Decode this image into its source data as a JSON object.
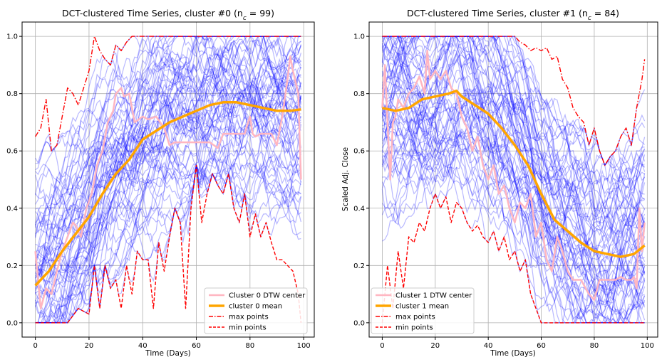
{
  "chart_data": [
    {
      "type": "line",
      "title": "DCT-clustered Time Series, cluster #0 (n",
      "title_sub": "c",
      "title_eq": " = 99)",
      "xlabel": "Time (Days)",
      "ylabel": "",
      "xlim": [
        -4.95,
        103.95
      ],
      "ylim": [
        -0.05,
        1.05
      ],
      "xticks": [
        "0",
        "20",
        "40",
        "60",
        "80",
        "100"
      ],
      "yticks": [
        "0.0",
        "0.2",
        "0.4",
        "0.6",
        "0.8",
        "1.0"
      ],
      "grid": true,
      "legend_position": "lower-right",
      "legend": [
        {
          "label": "Cluster 0 DTW center",
          "color": "#ffb6c1",
          "style": "solid-thick"
        },
        {
          "label": "cluster 0 mean",
          "color": "#ffa500",
          "style": "solid-thicker"
        },
        {
          "label": "max points",
          "color": "#ff0000",
          "style": "dashdot"
        },
        {
          "label": "min points",
          "color": "#ff0000",
          "style": "dashed"
        }
      ],
      "series": [
        {
          "name": "cluster 0 mean",
          "color": "#ffa500",
          "x": [
            0,
            5,
            10,
            15,
            20,
            25,
            30,
            35,
            40,
            45,
            50,
            55,
            60,
            65,
            70,
            75,
            80,
            85,
            90,
            95,
            99
          ],
          "y": [
            0.13,
            0.18,
            0.25,
            0.31,
            0.37,
            0.45,
            0.52,
            0.57,
            0.64,
            0.67,
            0.7,
            0.72,
            0.74,
            0.76,
            0.77,
            0.77,
            0.76,
            0.75,
            0.74,
            0.74,
            0.745
          ]
        },
        {
          "name": "Cluster 0 DTW center",
          "color": "#ffb6c1",
          "x": [
            0,
            2,
            4,
            6,
            8,
            10,
            12,
            14,
            15,
            17,
            19,
            21,
            23,
            25,
            27,
            29,
            30,
            32,
            33,
            35,
            37,
            40,
            42,
            45,
            48,
            50,
            52,
            55,
            57,
            60,
            62,
            65,
            68,
            70,
            72,
            75,
            78,
            80,
            81,
            82,
            84,
            86,
            88,
            90,
            92,
            94,
            95,
            96,
            98,
            99
          ],
          "y": [
            0.25,
            0.05,
            0.12,
            0.1,
            0.18,
            0.25,
            0.3,
            0.35,
            0.34,
            0.3,
            0.4,
            0.45,
            0.55,
            0.6,
            0.7,
            0.74,
            0.8,
            0.82,
            0.79,
            0.8,
            0.7,
            0.72,
            0.71,
            0.72,
            0.68,
            0.62,
            0.63,
            0.63,
            0.63,
            0.63,
            0.63,
            0.63,
            0.61,
            0.66,
            0.66,
            0.66,
            0.66,
            0.72,
            0.66,
            0.65,
            0.66,
            0.66,
            0.66,
            0.62,
            0.72,
            0.85,
            0.93,
            0.88,
            0.8,
            0.5
          ]
        },
        {
          "name": "max points",
          "color": "#ff0000",
          "x": [
            0,
            2,
            4,
            6,
            8,
            10,
            12,
            14,
            16,
            18,
            20,
            22,
            24,
            26,
            28,
            30,
            32,
            34,
            36,
            38,
            40,
            42,
            44,
            46,
            48,
            50,
            52,
            54,
            56,
            58,
            60,
            62,
            64,
            66,
            68,
            70,
            72,
            74,
            76,
            78,
            80,
            82,
            84,
            86,
            88,
            90,
            92,
            94,
            96,
            98,
            99
          ],
          "y": [
            0.65,
            0.68,
            0.78,
            0.6,
            0.62,
            0.72,
            0.82,
            0.8,
            0.76,
            0.82,
            0.88,
            1.0,
            0.95,
            0.92,
            0.9,
            0.97,
            0.95,
            0.98,
            1.0,
            1.0,
            1.0,
            1.0,
            1.0,
            1.0,
            1.0,
            1.0,
            1.0,
            1.0,
            1.0,
            1.0,
            1.0,
            1.0,
            1.0,
            1.0,
            1.0,
            1.0,
            1.0,
            1.0,
            1.0,
            1.0,
            1.0,
            1.0,
            1.0,
            1.0,
            1.0,
            1.0,
            1.0,
            1.0,
            1.0,
            1.0,
            1.0
          ]
        },
        {
          "name": "min points",
          "color": "#ff0000",
          "x": [
            0,
            4,
            8,
            12,
            16,
            20,
            22,
            24,
            26,
            28,
            30,
            32,
            34,
            36,
            38,
            40,
            42,
            44,
            46,
            48,
            50,
            52,
            54,
            56,
            58,
            60,
            62,
            64,
            66,
            68,
            70,
            72,
            74,
            76,
            78,
            80,
            82,
            84,
            86,
            88,
            90,
            92,
            94,
            96,
            98,
            99
          ],
          "y": [
            0.0,
            0.0,
            0.0,
            0.0,
            0.05,
            0.03,
            0.2,
            0.05,
            0.2,
            0.12,
            0.15,
            0.05,
            0.2,
            0.1,
            0.25,
            0.22,
            0.22,
            0.05,
            0.28,
            0.18,
            0.3,
            0.4,
            0.35,
            0.05,
            0.4,
            0.55,
            0.35,
            0.45,
            0.52,
            0.48,
            0.45,
            0.52,
            0.4,
            0.35,
            0.45,
            0.3,
            0.38,
            0.3,
            0.35,
            0.28,
            0.22,
            0.22,
            0.2,
            0.18,
            0.1,
            0.0
          ]
        }
      ]
    },
    {
      "type": "line",
      "title": "DCT-clustered Time Series, cluster #1 (n",
      "title_sub": "c",
      "title_eq": " = 84)",
      "xlabel": "Time (Days)",
      "ylabel": "Scaled Adj. Close",
      "xlim": [
        -4.95,
        103.95
      ],
      "ylim": [
        -0.05,
        1.05
      ],
      "xticks": [
        "0",
        "20",
        "40",
        "60",
        "80",
        "100"
      ],
      "yticks": [
        "0.0",
        "0.2",
        "0.4",
        "0.6",
        "0.8",
        "1.0"
      ],
      "grid": true,
      "legend_position": "lower-left",
      "legend": [
        {
          "label": "Cluster 1 DTW center",
          "color": "#ffb6c1",
          "style": "solid-thick"
        },
        {
          "label": "cluster 1 mean",
          "color": "#ffa500",
          "style": "solid-thicker"
        },
        {
          "label": "max points",
          "color": "#ff0000",
          "style": "dashdot"
        },
        {
          "label": "min points",
          "color": "#ff0000",
          "style": "dashed"
        }
      ],
      "series": [
        {
          "name": "cluster 1 mean",
          "color": "#ffa500",
          "x": [
            0,
            5,
            10,
            15,
            20,
            25,
            28,
            30,
            35,
            40,
            45,
            50,
            55,
            60,
            65,
            70,
            75,
            80,
            85,
            90,
            95,
            99
          ],
          "y": [
            0.75,
            0.74,
            0.75,
            0.78,
            0.79,
            0.8,
            0.81,
            0.79,
            0.76,
            0.73,
            0.68,
            0.62,
            0.55,
            0.45,
            0.36,
            0.32,
            0.28,
            0.25,
            0.24,
            0.23,
            0.24,
            0.27
          ]
        },
        {
          "name": "Cluster 1 DTW center",
          "color": "#ffb6c1",
          "x": [
            0,
            1,
            2,
            3,
            4,
            5,
            6,
            8,
            10,
            12,
            14,
            16,
            17,
            18,
            20,
            22,
            24,
            25,
            26,
            28,
            30,
            32,
            34,
            36,
            38,
            40,
            42,
            44,
            46,
            48,
            50,
            52,
            54,
            56,
            58,
            60,
            62,
            64,
            66,
            68,
            70,
            72,
            75,
            78,
            80,
            82,
            84,
            86,
            88,
            90,
            92,
            94,
            95,
            96,
            97,
            98,
            99
          ],
          "y": [
            0.75,
            0.9,
            0.7,
            0.5,
            0.7,
            0.72,
            0.78,
            0.75,
            0.8,
            0.82,
            0.86,
            0.8,
            0.95,
            0.85,
            0.88,
            0.85,
            0.88,
            0.85,
            0.82,
            0.8,
            0.72,
            0.68,
            0.6,
            0.65,
            0.55,
            0.5,
            0.55,
            0.45,
            0.48,
            0.4,
            0.35,
            0.42,
            0.4,
            0.45,
            0.3,
            0.35,
            0.22,
            0.18,
            0.3,
            0.25,
            0.18,
            0.15,
            0.15,
            0.1,
            0.08,
            0.15,
            0.15,
            0.15,
            0.15,
            0.16,
            0.15,
            0.15,
            0.16,
            0.12,
            0.4,
            0.25,
            0.35
          ]
        },
        {
          "name": "max points",
          "color": "#ff0000",
          "x": [
            0,
            5,
            10,
            15,
            20,
            25,
            30,
            35,
            40,
            45,
            50,
            52,
            54,
            56,
            58,
            60,
            62,
            64,
            66,
            68,
            70,
            72,
            74,
            76,
            78,
            80,
            82,
            84,
            86,
            88,
            90,
            92,
            94,
            96,
            98,
            99
          ],
          "y": [
            1.0,
            1.0,
            1.0,
            1.0,
            1.0,
            1.0,
            1.0,
            1.0,
            1.0,
            1.0,
            1.0,
            0.98,
            0.97,
            0.95,
            0.96,
            0.95,
            0.96,
            0.92,
            0.93,
            0.85,
            0.82,
            0.75,
            0.72,
            0.7,
            0.62,
            0.68,
            0.6,
            0.55,
            0.58,
            0.6,
            0.65,
            0.68,
            0.62,
            0.75,
            0.85,
            0.92
          ]
        },
        {
          "name": "min points",
          "color": "#ff0000",
          "x": [
            0,
            2,
            4,
            6,
            8,
            10,
            12,
            14,
            16,
            18,
            20,
            22,
            24,
            26,
            28,
            30,
            32,
            34,
            36,
            38,
            40,
            42,
            44,
            46,
            48,
            50,
            52,
            54,
            56,
            58,
            60,
            62,
            64,
            66,
            68,
            70,
            72,
            74,
            76,
            78,
            80,
            82,
            84,
            86,
            88,
            90,
            92,
            94,
            96,
            98,
            99
          ],
          "y": [
            0.0,
            0.2,
            0.05,
            0.25,
            0.12,
            0.3,
            0.28,
            0.35,
            0.32,
            0.4,
            0.45,
            0.4,
            0.44,
            0.35,
            0.42,
            0.4,
            0.35,
            0.32,
            0.34,
            0.3,
            0.28,
            0.32,
            0.25,
            0.3,
            0.22,
            0.25,
            0.18,
            0.22,
            0.1,
            0.05,
            0.0,
            0.0,
            0.0,
            0.0,
            0.0,
            0.0,
            0.0,
            0.0,
            0.0,
            0.0,
            0.0,
            0.0,
            0.0,
            0.0,
            0.0,
            0.0,
            0.0,
            0.0,
            0.0,
            0.0,
            0.0
          ]
        }
      ]
    }
  ]
}
